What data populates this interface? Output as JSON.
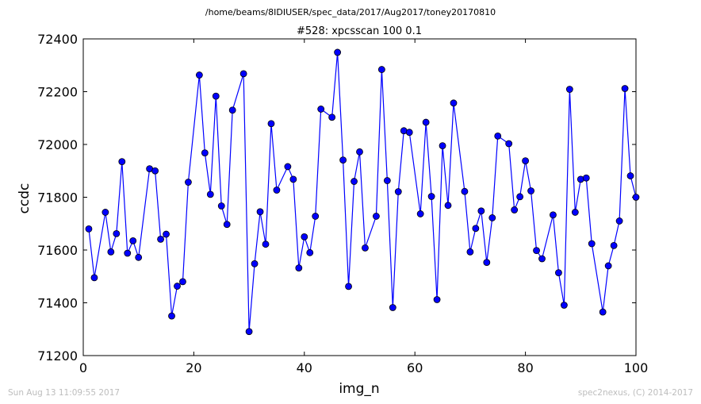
{
  "suptitle": "/home/beams/8IDIUSER/spec_data/2017/Aug2017/toney20170810",
  "footer_left": "Sun Aug 13 11:09:55 2017",
  "footer_right": "spec2nexus, (C) 2014-2017",
  "colors": {
    "series": "#0000ff",
    "axes": "#000000",
    "footer": "#bdbdbd"
  },
  "chart_data": {
    "type": "line",
    "title": "#528: xpcsscan 100 0.1",
    "xlabel": "img_n",
    "ylabel": "ccdc",
    "xlim": [
      0,
      100
    ],
    "ylim": [
      71200,
      72400
    ],
    "xticks": [
      0,
      20,
      40,
      60,
      80,
      100
    ],
    "yticks": [
      71200,
      71400,
      71600,
      71800,
      72000,
      72200,
      72400
    ],
    "grid": false,
    "marker": "circle",
    "series": [
      {
        "x": [
          1,
          2,
          4,
          5,
          6,
          7,
          8,
          9,
          10,
          12,
          13,
          14,
          15,
          16,
          17,
          18,
          19,
          21,
          22,
          23,
          24,
          25,
          26,
          27,
          29,
          30,
          31,
          32,
          33,
          34,
          35,
          37,
          38,
          39,
          40,
          41,
          42,
          43,
          45,
          46,
          47,
          48,
          49,
          50,
          51,
          53,
          54,
          55,
          56,
          57,
          58,
          59,
          61,
          62,
          63,
          64,
          65,
          66,
          67,
          69,
          70,
          71,
          72,
          73,
          74,
          75,
          77,
          78,
          79,
          80,
          81,
          82,
          83,
          85,
          86,
          87,
          88,
          89,
          90,
          91,
          92,
          94,
          95,
          96,
          97,
          98,
          99,
          100
        ],
        "values": [
          71680,
          71495,
          71743,
          71593,
          71662,
          71935,
          71588,
          71635,
          71572,
          71908,
          71900,
          71641,
          71660,
          71350,
          71463,
          71480,
          71857,
          72263,
          71968,
          71811,
          72183,
          71767,
          71697,
          72130,
          72268,
          71291,
          71548,
          71745,
          71622,
          72079,
          71827,
          71916,
          71868,
          71532,
          71650,
          71590,
          71728,
          72134,
          72103,
          72349,
          71941,
          71462,
          71860,
          71972,
          71608,
          71728,
          72284,
          71863,
          71382,
          71821,
          72052,
          72046,
          71737,
          72084,
          71803,
          71412,
          71995,
          71769,
          72157,
          71822,
          71593,
          71682,
          71748,
          71553,
          71722,
          72032,
          72003,
          71752,
          71802,
          71938,
          71824,
          71598,
          71567,
          71733,
          71514,
          71391,
          72209,
          71743,
          71868,
          71873,
          71624,
          71365,
          71540,
          71617,
          71710,
          72212,
          71881,
          71800
        ]
      }
    ]
  }
}
